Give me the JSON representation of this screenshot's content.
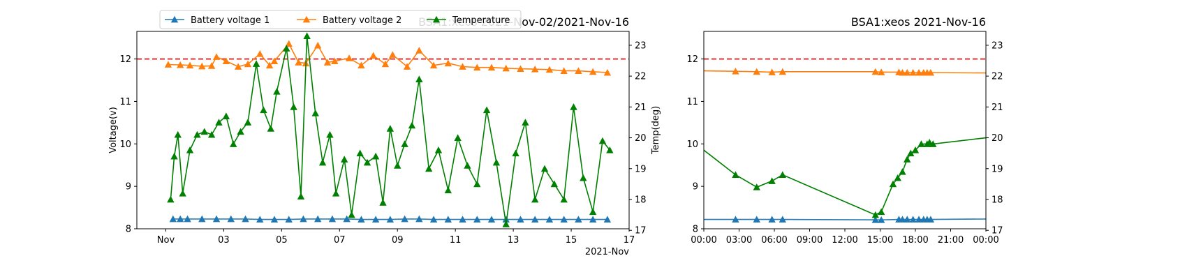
{
  "chart_data": [
    {
      "type": "line",
      "title": "BSA1:xeos 2021-Nov-02/2021-Nov-16",
      "xlabel": "",
      "x_offset_label": "2021-Nov",
      "ylabel": "Voltage(v)",
      "y2label": "Temp(deg)",
      "x_axis": "date",
      "xlim": [
        "2021-10-31",
        "2021-11-17"
      ],
      "xticks": [
        "2021-11-01",
        "2021-11-03",
        "2021-11-05",
        "2021-11-07",
        "2021-11-09",
        "2021-11-11",
        "2021-11-13",
        "2021-11-15",
        "2021-11-17"
      ],
      "xtick_labels": [
        "Nov",
        "03",
        "05",
        "07",
        "09",
        "11",
        "13",
        "15",
        "17"
      ],
      "ylim": [
        8.0,
        12.65
      ],
      "yticks": [
        8,
        9,
        10,
        11,
        12
      ],
      "y2lim": [
        17.05,
        23.45
      ],
      "y2ticks": [
        17,
        18,
        19,
        20,
        21,
        22,
        23
      ],
      "threshold": {
        "value": 12,
        "color": "#d62728",
        "style": "dashed"
      },
      "legend": {
        "placement": "top-left-outside",
        "entries": [
          "Battery voltage 1",
          "Battery voltage 2",
          "Temperature"
        ]
      },
      "series": [
        {
          "name": "Battery voltage 1",
          "axis": "left",
          "color": "#1f77b4",
          "marker": "triangle",
          "x": [
            "2021-11-01T06:00",
            "2021-11-01T12:00",
            "2021-11-01T18:00",
            "2021-11-02T06:00",
            "2021-11-02T18:00",
            "2021-11-03T06:00",
            "2021-11-03T18:00",
            "2021-11-04T06:00",
            "2021-11-04T18:00",
            "2021-11-05T06:00",
            "2021-11-05T18:00",
            "2021-11-06T06:00",
            "2021-11-06T18:00",
            "2021-11-07T06:00",
            "2021-11-07T18:00",
            "2021-11-08T06:00",
            "2021-11-08T18:00",
            "2021-11-09T06:00",
            "2021-11-09T18:00",
            "2021-11-10T06:00",
            "2021-11-10T18:00",
            "2021-11-11T06:00",
            "2021-11-11T18:00",
            "2021-11-12T06:00",
            "2021-11-12T18:00",
            "2021-11-13T06:00",
            "2021-11-13T18:00",
            "2021-11-14T06:00",
            "2021-11-14T18:00",
            "2021-11-15T06:00",
            "2021-11-15T18:00",
            "2021-11-16T06:00"
          ],
          "values": [
            8.23,
            8.23,
            8.23,
            8.23,
            8.23,
            8.23,
            8.23,
            8.22,
            8.22,
            8.22,
            8.23,
            8.23,
            8.23,
            8.23,
            8.22,
            8.22,
            8.22,
            8.23,
            8.23,
            8.22,
            8.22,
            8.22,
            8.22,
            8.22,
            8.22,
            8.22,
            8.22,
            8.22,
            8.22,
            8.22,
            8.22,
            8.22
          ]
        },
        {
          "name": "Battery voltage 2",
          "axis": "left",
          "color": "#ff7f0e",
          "marker": "triangle",
          "x": [
            "2021-11-01T02:00",
            "2021-11-01T12:00",
            "2021-11-01T20:00",
            "2021-11-02T06:00",
            "2021-11-02T14:00",
            "2021-11-02T18:00",
            "2021-11-03T02:00",
            "2021-11-03T12:00",
            "2021-11-03T20:00",
            "2021-11-04T06:00",
            "2021-11-04T14:00",
            "2021-11-04T18:00",
            "2021-11-05T06:00",
            "2021-11-05T14:00",
            "2021-11-05T20:00",
            "2021-11-06T06:00",
            "2021-11-06T14:00",
            "2021-11-06T20:00",
            "2021-11-07T08:00",
            "2021-11-07T18:00",
            "2021-11-08T04:00",
            "2021-11-08T14:00",
            "2021-11-08T20:00",
            "2021-11-09T08:00",
            "2021-11-09T18:00",
            "2021-11-10T06:00",
            "2021-11-10T18:00",
            "2021-11-11T06:00",
            "2021-11-11T18:00",
            "2021-11-12T06:00",
            "2021-11-12T18:00",
            "2021-11-13T06:00",
            "2021-11-13T18:00",
            "2021-11-14T06:00",
            "2021-11-14T18:00",
            "2021-11-15T06:00",
            "2021-11-15T18:00",
            "2021-11-16T06:00"
          ],
          "values": [
            11.87,
            11.86,
            11.85,
            11.83,
            11.84,
            12.05,
            11.95,
            11.82,
            11.88,
            12.12,
            11.85,
            11.95,
            12.36,
            11.92,
            11.9,
            12.32,
            11.92,
            11.95,
            12.02,
            11.85,
            12.08,
            11.88,
            12.1,
            11.82,
            12.2,
            11.85,
            11.9,
            11.82,
            11.8,
            11.8,
            11.78,
            11.77,
            11.76,
            11.75,
            11.72,
            11.72,
            11.7,
            11.68
          ]
        },
        {
          "name": "Temperature",
          "axis": "right",
          "color": "#008000",
          "marker": "triangle",
          "x": [
            "2021-11-01T04:00",
            "2021-11-01T07:00",
            "2021-11-01T10:00",
            "2021-11-01T14:00",
            "2021-11-01T20:00",
            "2021-11-02T02:00",
            "2021-11-02T08:00",
            "2021-11-02T14:00",
            "2021-11-02T20:00",
            "2021-11-03T02:00",
            "2021-11-03T08:00",
            "2021-11-03T14:00",
            "2021-11-03T20:00",
            "2021-11-04T03:00",
            "2021-11-04T09:00",
            "2021-11-04T15:00",
            "2021-11-04T20:00",
            "2021-11-05T04:00",
            "2021-11-05T10:00",
            "2021-11-05T16:00",
            "2021-11-05T21:00",
            "2021-11-06T04:00",
            "2021-11-06T10:00",
            "2021-11-06T16:00",
            "2021-11-06T21:00",
            "2021-11-07T04:00",
            "2021-11-07T10:00",
            "2021-11-07T17:00",
            "2021-11-07T23:00",
            "2021-11-08T06:00",
            "2021-11-08T12:00",
            "2021-11-08T18:00",
            "2021-11-09T00:00",
            "2021-11-09T06:00",
            "2021-11-09T12:00",
            "2021-11-09T18:00",
            "2021-11-10T02:00",
            "2021-11-10T10:00",
            "2021-11-10T18:00",
            "2021-11-11T02:00",
            "2021-11-11T10:00",
            "2021-11-11T18:00",
            "2021-11-12T02:00",
            "2021-11-12T10:00",
            "2021-11-12T18:00",
            "2021-11-13T02:00",
            "2021-11-13T10:00",
            "2021-11-13T18:00",
            "2021-11-14T02:00",
            "2021-11-14T10:00",
            "2021-11-14T18:00",
            "2021-11-15T02:00",
            "2021-11-15T10:00",
            "2021-11-15T18:00",
            "2021-11-16T02:00",
            "2021-11-16T08:00"
          ],
          "values": [
            18.0,
            19.4,
            20.1,
            18.2,
            19.6,
            20.1,
            20.2,
            20.1,
            20.5,
            20.7,
            19.8,
            20.2,
            20.5,
            22.4,
            20.9,
            20.3,
            21.5,
            22.9,
            21.0,
            18.1,
            23.3,
            20.8,
            19.2,
            20.1,
            18.2,
            19.3,
            17.5,
            19.5,
            19.2,
            19.4,
            17.9,
            20.3,
            19.1,
            19.8,
            20.4,
            21.9,
            19.0,
            19.6,
            18.3,
            20.0,
            19.1,
            18.5,
            20.9,
            19.2,
            17.2,
            19.5,
            20.5,
            18.0,
            19.0,
            18.5,
            18.0,
            21.0,
            18.7,
            17.6,
            19.9,
            19.6
          ]
        }
      ]
    },
    {
      "type": "line",
      "title": "BSA1:xeos 2021-Nov-16",
      "xlabel": "",
      "x_axis": "time",
      "xlim": [
        "00:00",
        "24:00"
      ],
      "xtick_labels": [
        "00:00",
        "03:00",
        "06:00",
        "09:00",
        "12:00",
        "15:00",
        "18:00",
        "21:00",
        "00:00"
      ],
      "ylim": [
        8.0,
        12.65
      ],
      "yticks": [
        8,
        9,
        10,
        11,
        12
      ],
      "y2lim": [
        17.05,
        23.45
      ],
      "y2ticks": [
        17,
        18,
        19,
        20,
        21,
        22,
        23
      ],
      "threshold": {
        "value": 12,
        "color": "#d62728",
        "style": "dashed"
      },
      "series": [
        {
          "name": "Battery voltage 1",
          "axis": "left",
          "color": "#1f77b4",
          "marker": "triangle",
          "x": [
            0.0,
            2.7,
            4.5,
            5.8,
            6.7,
            14.6,
            15.1,
            16.6,
            16.9,
            17.3,
            17.8,
            18.3,
            18.7,
            19.0,
            19.3,
            24.0
          ],
          "values": [
            8.22,
            8.22,
            8.22,
            8.22,
            8.22,
            8.21,
            8.21,
            8.22,
            8.22,
            8.22,
            8.22,
            8.22,
            8.22,
            8.22,
            8.22,
            8.23
          ],
          "markers_from": 1,
          "markers_to": 14
        },
        {
          "name": "Battery voltage 2",
          "axis": "left",
          "color": "#ff7f0e",
          "marker": "triangle",
          "x": [
            0.0,
            2.7,
            4.5,
            5.8,
            6.7,
            14.6,
            15.1,
            16.6,
            16.9,
            17.3,
            17.8,
            18.3,
            18.7,
            19.0,
            19.3,
            24.0
          ],
          "values": [
            11.72,
            11.71,
            11.7,
            11.69,
            11.7,
            11.7,
            11.69,
            11.69,
            11.68,
            11.68,
            11.68,
            11.68,
            11.68,
            11.68,
            11.68,
            11.67
          ],
          "markers_from": 1,
          "markers_to": 14
        },
        {
          "name": "Temperature",
          "axis": "right",
          "color": "#008000",
          "marker": "triangle",
          "x": [
            0.0,
            2.7,
            4.5,
            5.8,
            6.7,
            14.6,
            15.1,
            16.1,
            16.5,
            16.9,
            17.3,
            17.6,
            18.0,
            18.5,
            19.0,
            19.2,
            19.5,
            24.0
          ],
          "values": [
            19.6,
            18.8,
            18.4,
            18.6,
            18.8,
            17.5,
            17.6,
            18.5,
            18.7,
            18.9,
            19.3,
            19.5,
            19.6,
            19.8,
            19.8,
            19.85,
            19.8,
            20.0
          ],
          "markers_from": 1,
          "markers_to": 16
        }
      ]
    }
  ]
}
